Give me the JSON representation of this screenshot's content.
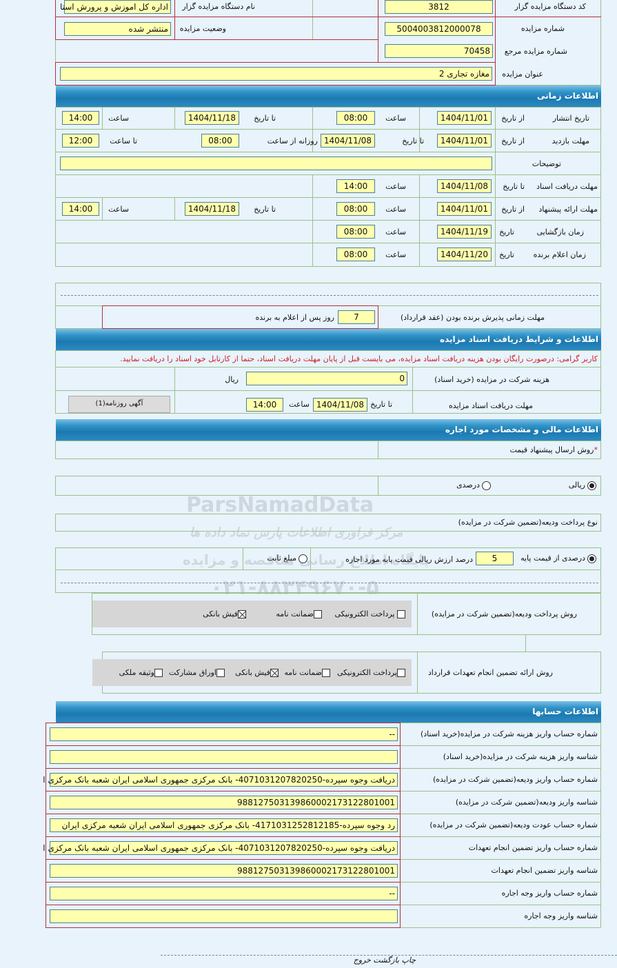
{
  "header": {
    "org_code_label": "کد دستگاه مزایده گزار",
    "org_code": "3812",
    "org_name_label": "نام دستگاه مزایده گزار",
    "org_name": "اداره کل اموزش و پرورش استا",
    "auction_no_label": "شماره مزایده",
    "auction_no": "5004003812000078",
    "status_label": "وضعیت مزایده",
    "status": "منتشر شده",
    "ref_no_label": "شماره مزایده مرجع",
    "ref_no": "70458",
    "title_label": "عنوان مزایده",
    "title": "مغازه تجاری 2"
  },
  "time": {
    "section": "اطلاعات زمانی",
    "from_date": "از تاریخ",
    "to_date": "تا تاریخ",
    "hour": "ساعت",
    "date": "تاریخ",
    "to_hour": "تا ساعت",
    "daily_from": "روزانه از ساعت",
    "publish": {
      "label": "تاریخ انتشار",
      "from": "1404/11/01",
      "from_time": "08:00",
      "to": "1404/11/18",
      "to_time": "14:00"
    },
    "visit": {
      "label": "مهلت بازدید",
      "from": "1404/11/01",
      "to": "1404/11/08",
      "daily_from": "08:00",
      "to_time": "12:00"
    },
    "notes": {
      "label": "توضیحات",
      "value": ""
    },
    "docs": {
      "label": "مهلت دریافت اسناد",
      "to": "1404/11/08",
      "time": "14:00"
    },
    "offer": {
      "label": "مهلت ارائه پیشنهاد",
      "from": "1404/11/01",
      "from_time": "08:00",
      "to": "1404/11/18",
      "to_time": "14:00"
    },
    "opening": {
      "label": "زمان بازگشایی",
      "date": "1404/11/19",
      "time": "08:00"
    },
    "winner": {
      "label": "زمان اعلام برنده",
      "date": "1404/11/20",
      "time": "08:00"
    },
    "accept": {
      "label": "مهلت زمانی پذیرش برنده بودن (عقد قرارداد)",
      "days": "7",
      "suffix": "روز پس از اعلام به برنده"
    }
  },
  "docs": {
    "section": "اطلاعات و شرایط دریافت اسناد مزایده",
    "notice": "کاربر گرامی: درصورت رایگان بودن هزینه دریافت اسناد مزایده، می بایست قبل از پایان مهلت دریافت اسناد، حتما از کارتابل خود اسناد را دریافت نمایید.",
    "notice_color": "#d0202a",
    "fee_label": "هزینه شرکت در مزایده (خرید اسناد)",
    "fee": "0",
    "currency": "ریال",
    "deadline_label": "مهلت دریافت اسناد مزایده",
    "to_date_label": "تا تاریخ",
    "to_date": "1404/11/08",
    "hour_label": "ساعت",
    "hour": "14:00",
    "newspaper_button": "آگهی روزنامه(1)"
  },
  "finance": {
    "section": "اطلاعات مالی و مشخصات مورد اجاره",
    "method_label": "روش ارسال پیشنهاد قیمت",
    "required_mark": "*",
    "rial": "ریالی",
    "rial_selected": true,
    "percent": "درصدی",
    "percent_selected": false,
    "deposit_type_label": "نوع پرداخت ودیعه(تضمین شرکت در مزایده)",
    "pct_of_base": "درصدی از قیمت پایه",
    "pct_of_base_selected": true,
    "pct_value": "5",
    "pct_suffix": "درصد ارزش ریالی قیمت پایه مورد اجاره",
    "fixed": "مبلغ ثابت",
    "fixed_selected": false,
    "deposit_method_label": "روش پرداخت ودیعه(تضمین شرکت در مزایده)",
    "deposit_methods": [
      {
        "label": "پرداخت الکترونیکی",
        "checked": false
      },
      {
        "label": "ضمانت نامه",
        "checked": false
      },
      {
        "label": "فیش بانکی",
        "checked": true
      }
    ],
    "guarantee_label": "روش ارائه تضمین انجام تعهدات قرارداد",
    "guarantee_methods": [
      {
        "label": "پرداخت الکترونیکی",
        "checked": false
      },
      {
        "label": "ضمانت نامه",
        "checked": false
      },
      {
        "label": "فیش بانکی",
        "checked": true
      },
      {
        "label": "اوراق مشارکت",
        "checked": false
      },
      {
        "label": "وثیقه ملکی",
        "checked": false
      }
    ]
  },
  "accounts": {
    "section": "اطلاعات حسابها",
    "rows": [
      {
        "label": "شماره حساب واریز هزینه شرکت در مزایده(خرید اسناد)",
        "value": "--"
      },
      {
        "label": "شناسه واریز هزینه شرکت در مزایده(خرید اسناد)",
        "value": ""
      },
      {
        "label": "شماره حساب واریز ودیعه(تضمین شرکت در مزایده)",
        "value": "دریافت وجوه سپرده-4071031207820250- بانک مرکزی جمهوری اسلامی ایران شعبه بانک مرکزی ا"
      },
      {
        "label": "شناسه واریز ودیعه(تضمین شرکت در مزایده)",
        "value": "988127503139860002173122801001"
      },
      {
        "label": "شماره حساب عودت ودیعه(تضمین شرکت در مزایده)",
        "value": "رد وجوه سپرده-4171031252812185- بانک مرکزی جمهوری اسلامی ایران شعبه مرکزی ایران"
      },
      {
        "label": "شماره حساب واریز تضمین انجام تعهدات",
        "value": "دریافت وجوه سپرده-4071031207820250- بانک مرکزی جمهوری اسلامی ایران شعبه بانک مرکزی ا"
      },
      {
        "label": "شناسه واریز تضمین انجام تعهدات",
        "value": "988127503139860002173122801001"
      },
      {
        "label": "شماره حساب واریز وجه اجاره",
        "value": "--"
      },
      {
        "label": "شناسه واریز وجه اجاره",
        "value": ""
      }
    ]
  },
  "footer": {
    "print": "چاپ",
    "back": "بازگشت",
    "exit": "خروج"
  },
  "watermark": {
    "brand": "ParsNamadData",
    "line1": "مرکز فراوری اطلاعات پارس نماد داده ها",
    "line2": "پایگاه اطلاع رسانی مناقصه و مزایده",
    "phone": "۰۲۱-۸۸۳۴۹۶۷۰-۵"
  }
}
